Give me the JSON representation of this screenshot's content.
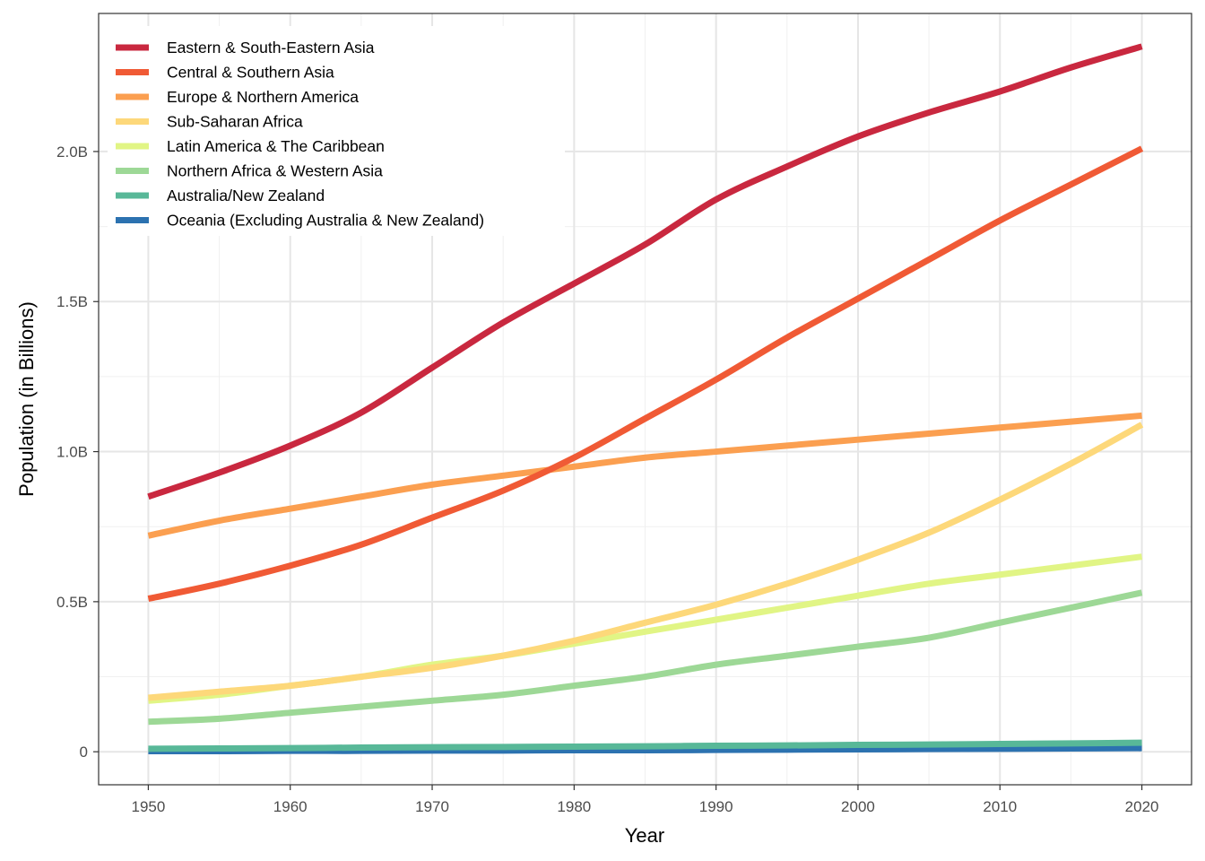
{
  "chart_data": {
    "type": "line",
    "title": "",
    "xlabel": "Year",
    "ylabel": "Population (in Billions)",
    "xlim": [
      1946.5,
      2023.5
    ],
    "ylim": [
      -0.11,
      2.46
    ],
    "x_ticks": [
      1950,
      1960,
      1970,
      1980,
      1990,
      2000,
      2010,
      2020
    ],
    "x_tick_labels": [
      "1950",
      "1960",
      "1970",
      "1980",
      "1990",
      "2000",
      "2010",
      "2020"
    ],
    "y_ticks": [
      0,
      0.5,
      1.0,
      1.5,
      2.0
    ],
    "y_tick_labels": [
      "0",
      "0.5B",
      "1.0B",
      "1.5B",
      "2.0B"
    ],
    "grid": true,
    "legend_position": "top-left",
    "x": [
      1950,
      1955,
      1960,
      1965,
      1970,
      1975,
      1980,
      1985,
      1990,
      1995,
      2000,
      2005,
      2010,
      2015,
      2020
    ],
    "series": [
      {
        "name": "Eastern & South-Eastern Asia",
        "color": "#C9283F",
        "values": [
          0.85,
          0.93,
          1.02,
          1.13,
          1.28,
          1.43,
          1.56,
          1.69,
          1.84,
          1.95,
          2.05,
          2.13,
          2.2,
          2.28,
          2.35
        ]
      },
      {
        "name": "Central & Southern Asia",
        "color": "#F05A35",
        "values": [
          0.51,
          0.56,
          0.62,
          0.69,
          0.78,
          0.87,
          0.98,
          1.11,
          1.24,
          1.38,
          1.51,
          1.64,
          1.77,
          1.89,
          2.01
        ]
      },
      {
        "name": "Europe & Northern America",
        "color": "#FB9F50",
        "values": [
          0.72,
          0.77,
          0.81,
          0.85,
          0.89,
          0.92,
          0.95,
          0.98,
          1.0,
          1.02,
          1.04,
          1.06,
          1.08,
          1.1,
          1.12
        ]
      },
      {
        "name": "Sub-Saharan Africa",
        "color": "#FDD87A",
        "values": [
          0.18,
          0.2,
          0.22,
          0.25,
          0.28,
          0.32,
          0.37,
          0.43,
          0.49,
          0.56,
          0.64,
          0.73,
          0.84,
          0.96,
          1.09
        ]
      },
      {
        "name": "Latin America & The Caribbean",
        "color": "#E1F585",
        "values": [
          0.17,
          0.19,
          0.22,
          0.25,
          0.29,
          0.32,
          0.36,
          0.4,
          0.44,
          0.48,
          0.52,
          0.56,
          0.59,
          0.62,
          0.65
        ]
      },
      {
        "name": "Northern Africa & Western Asia",
        "color": "#9DD896",
        "values": [
          0.1,
          0.11,
          0.13,
          0.15,
          0.17,
          0.19,
          0.22,
          0.25,
          0.29,
          0.32,
          0.35,
          0.38,
          0.43,
          0.48,
          0.53
        ]
      },
      {
        "name": "Australia/New Zealand",
        "color": "#58B898",
        "values": [
          0.01,
          0.011,
          0.012,
          0.014,
          0.015,
          0.016,
          0.017,
          0.018,
          0.02,
          0.021,
          0.023,
          0.024,
          0.026,
          0.028,
          0.03
        ]
      },
      {
        "name": "Oceania (Excluding Australia & New Zealand)",
        "color": "#2C72B0",
        "values": [
          0.002,
          0.002,
          0.003,
          0.003,
          0.004,
          0.004,
          0.005,
          0.005,
          0.006,
          0.007,
          0.008,
          0.009,
          0.01,
          0.011,
          0.012
        ]
      }
    ]
  }
}
